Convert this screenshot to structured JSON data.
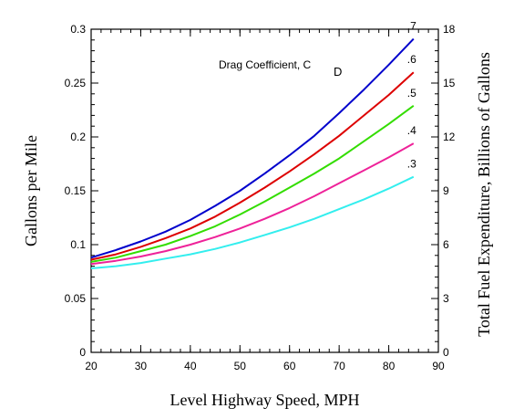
{
  "chart_data": {
    "type": "line",
    "xlabel": "Level Highway Speed, MPH",
    "ylabel": "Gallons per Mile",
    "y2label": "Total Fuel Expenditure, Billions of Gallons",
    "xlim": [
      20,
      90
    ],
    "ylim": [
      0,
      0.3
    ],
    "y2lim": [
      0,
      18
    ],
    "xticks": [
      20,
      30,
      40,
      50,
      60,
      70,
      80,
      90
    ],
    "yticks": [
      0,
      0.05,
      0.1,
      0.15,
      0.2,
      0.25,
      0.3
    ],
    "yticklabels": [
      "0",
      "0.05",
      "0.1",
      "0.15",
      "0.2",
      "0.25",
      "0.3"
    ],
    "y2ticks": [
      0,
      3,
      6,
      9,
      12,
      15,
      18
    ],
    "annotation": {
      "text": "Drag Coefficient, C",
      "subscript": "D"
    },
    "x": [
      20,
      25,
      30,
      35,
      40,
      45,
      50,
      55,
      60,
      65,
      70,
      75,
      80,
      85
    ],
    "series": [
      {
        "name": ".7",
        "color": "#0000cc",
        "values": [
          0.088,
          0.095,
          0.103,
          0.112,
          0.123,
          0.136,
          0.15,
          0.166,
          0.183,
          0.201,
          0.222,
          0.244,
          0.267,
          0.291
        ]
      },
      {
        "name": ".6",
        "color": "#dd0000",
        "values": [
          0.086,
          0.091,
          0.098,
          0.106,
          0.115,
          0.126,
          0.139,
          0.153,
          0.168,
          0.184,
          0.201,
          0.22,
          0.239,
          0.26
        ]
      },
      {
        "name": ".5",
        "color": "#33dd00",
        "values": [
          0.084,
          0.088,
          0.094,
          0.1,
          0.108,
          0.117,
          0.128,
          0.14,
          0.153,
          0.166,
          0.18,
          0.196,
          0.212,
          0.229
        ]
      },
      {
        "name": ".4",
        "color": "#ee2299",
        "values": [
          0.082,
          0.085,
          0.089,
          0.094,
          0.1,
          0.107,
          0.115,
          0.124,
          0.134,
          0.145,
          0.157,
          0.169,
          0.181,
          0.194
        ]
      },
      {
        "name": ".3",
        "color": "#33eeee",
        "values": [
          0.078,
          0.08,
          0.083,
          0.087,
          0.091,
          0.096,
          0.102,
          0.109,
          0.116,
          0.124,
          0.133,
          0.142,
          0.152,
          0.163
        ]
      }
    ]
  }
}
